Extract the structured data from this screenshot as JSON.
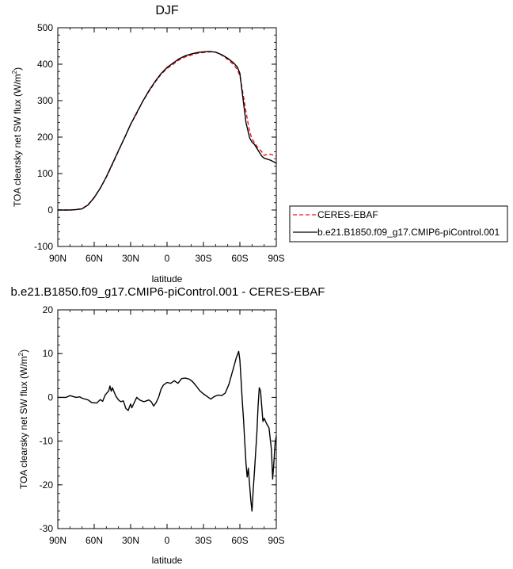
{
  "chart_data": [
    {
      "type": "line",
      "title": "DJF",
      "xlabel": "latitude",
      "ylabel": "TOA clearsky net SW flux (W/m",
      "ylabel_sup": "2",
      "ylabel_close": ")",
      "xlim": [
        90,
        -90
      ],
      "ylim": [
        -100,
        500
      ],
      "xticks": [
        90,
        60,
        30,
        0,
        -30,
        -60,
        -90
      ],
      "xtick_labels": [
        "90N",
        "60N",
        "30N",
        "0",
        "30S",
        "60S",
        "90S"
      ],
      "yticks": [
        -100,
        0,
        100,
        200,
        300,
        400,
        500
      ],
      "ytick_labels": [
        "-100",
        "0",
        "100",
        "200",
        "300",
        "400",
        "500"
      ],
      "legend_position": "right",
      "series": [
        {
          "name": "CERES-EBAF",
          "color": "#e8141c",
          "dash": "dashed",
          "x": [
            90,
            85,
            80,
            75,
            70,
            65,
            60,
            55,
            50,
            45,
            40,
            35,
            30,
            25,
            20,
            15,
            10,
            5,
            0,
            -5,
            -10,
            -15,
            -20,
            -25,
            -30,
            -35,
            -40,
            -45,
            -50,
            -55,
            -58,
            -60,
            -62,
            -65,
            -68,
            -70,
            -72,
            -75,
            -78,
            -80,
            -82,
            -85,
            -88,
            -90
          ],
          "y": [
            0,
            0,
            0,
            1,
            4,
            15,
            35,
            60,
            90,
            125,
            162,
            198,
            235,
            265,
            298,
            325,
            350,
            372,
            388,
            400,
            412,
            420,
            425,
            430,
            432,
            434,
            433,
            425,
            413,
            398,
            385,
            368,
            330,
            270,
            215,
            195,
            185,
            170,
            160,
            150,
            152,
            153,
            150,
            148
          ]
        },
        {
          "name": "b.e21.B1850.f09_g17.CMIP6-piControl.001",
          "color": "#000000",
          "dash": "solid",
          "x": [
            90,
            85,
            80,
            75,
            70,
            65,
            60,
            55,
            50,
            45,
            40,
            35,
            30,
            25,
            20,
            15,
            10,
            5,
            0,
            -5,
            -10,
            -15,
            -20,
            -25,
            -30,
            -35,
            -40,
            -45,
            -50,
            -55,
            -58,
            -60,
            -62,
            -65,
            -68,
            -70,
            -72,
            -75,
            -78,
            -80,
            -82,
            -85,
            -88,
            -90
          ],
          "y": [
            0,
            0,
            0,
            1,
            3,
            14,
            34,
            60,
            91,
            127,
            163,
            198,
            235,
            267,
            298,
            327,
            352,
            374,
            391,
            403,
            415,
            423,
            428,
            432,
            434,
            435,
            433,
            426,
            416,
            403,
            392,
            375,
            320,
            240,
            198,
            186,
            180,
            164,
            148,
            142,
            140,
            137,
            132,
            128
          ]
        }
      ]
    },
    {
      "type": "line",
      "title": "b.e21.B1850.f09_g17.CMIP6-piControl.001 - CERES-EBAF",
      "xlabel": "latitude",
      "ylabel": "TOA clearsky net SW flux (W/m",
      "ylabel_sup": "2",
      "ylabel_close": ")",
      "xlim": [
        90,
        -90
      ],
      "ylim": [
        -30,
        20
      ],
      "xticks": [
        90,
        60,
        30,
        0,
        -30,
        -60,
        -90
      ],
      "xtick_labels": [
        "90N",
        "60N",
        "30N",
        "0",
        "30S",
        "60S",
        "90S"
      ],
      "yticks": [
        -30,
        -20,
        -10,
        0,
        10,
        20
      ],
      "ytick_labels": [
        "-30",
        "-20",
        "-10",
        "0",
        "10",
        "20"
      ],
      "series": [
        {
          "color": "#000000",
          "x": [
            90,
            83,
            80,
            75,
            72,
            70,
            65,
            62,
            58,
            55,
            53,
            51,
            48,
            47,
            46,
            45,
            44,
            42,
            40,
            38,
            36,
            34,
            32,
            31,
            30,
            29,
            27,
            25,
            23,
            21,
            19,
            17,
            15,
            13,
            11,
            9,
            7,
            5,
            3,
            0,
            -3,
            -6,
            -9,
            -12,
            -15,
            -18,
            -21,
            -24,
            -27,
            -30,
            -33,
            -36,
            -39,
            -42,
            -45,
            -48,
            -51,
            -54,
            -57,
            -59,
            -60,
            -61,
            -62,
            -63,
            -64,
            -65,
            -66,
            -67,
            -68,
            -69,
            -70,
            -71,
            -72,
            -74,
            -75,
            -76,
            -77,
            -78,
            -79,
            -80,
            -82,
            -84,
            -86,
            -87,
            -88,
            -89,
            -90
          ],
          "y": [
            0,
            0,
            0.4,
            0,
            0.1,
            -0.2,
            -0.6,
            -1.2,
            -1.3,
            -0.5,
            -0.9,
            0.5,
            1.5,
            2.6,
            1.4,
            2.2,
            1.5,
            0.2,
            -0.6,
            -1.0,
            -0.8,
            -2.5,
            -3.0,
            -2.2,
            -1.5,
            -2.4,
            -1.2,
            0.0,
            -0.5,
            -0.8,
            -1.0,
            -0.8,
            -0.6,
            -1.0,
            -2.0,
            -1.2,
            0.0,
            1.8,
            2.8,
            3.4,
            3.2,
            3.8,
            3.2,
            4.3,
            4.4,
            4.2,
            3.6,
            2.6,
            1.5,
            0.8,
            0.2,
            -0.4,
            0.2,
            0.5,
            0.4,
            1.0,
            3.0,
            6.0,
            9.0,
            10.5,
            8.5,
            4.0,
            -1.0,
            -5.0,
            -10.0,
            -15.0,
            -18.2,
            -16.2,
            -20.0,
            -23.5,
            -26.0,
            -21.0,
            -17.0,
            -8.0,
            -2.0,
            2.2,
            1.5,
            -2.0,
            -5.5,
            -4.8,
            -6.0,
            -7.0,
            -12.0,
            -18.7,
            -15.0,
            -10.5,
            -8.8
          ]
        }
      ]
    }
  ]
}
